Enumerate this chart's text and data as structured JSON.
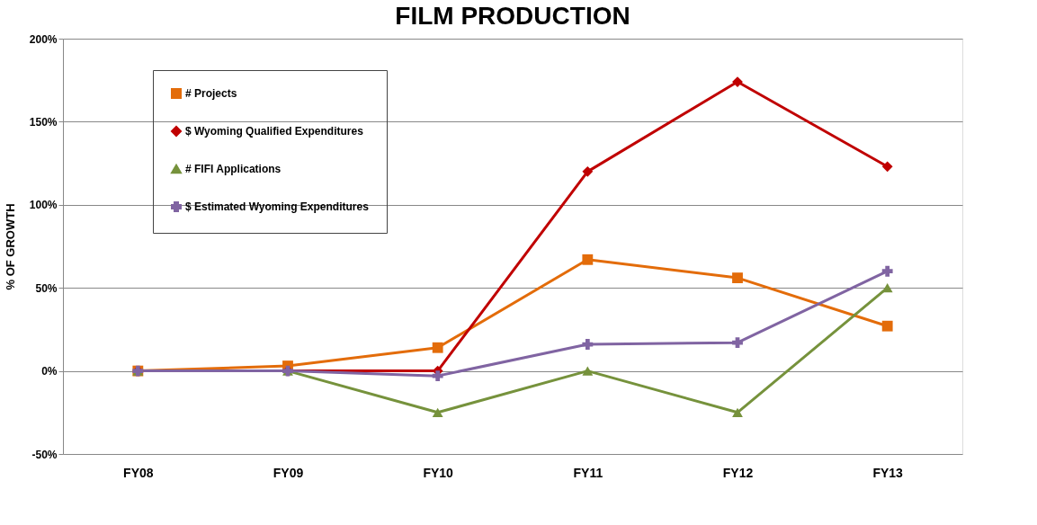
{
  "chart_data": {
    "type": "line",
    "title": "FILM PRODUCTION",
    "ylabel": "% OF GROWTH",
    "categories": [
      "FY08",
      "FY09",
      "FY10",
      "FY11",
      "FY12",
      "FY13"
    ],
    "series": [
      {
        "name": "# Projects",
        "color": "#e36c0a",
        "marker": "square",
        "values": [
          0,
          3,
          14,
          67,
          56,
          27
        ]
      },
      {
        "name": "$ Wyoming Qualified Expenditures",
        "color": "#c00000",
        "marker": "diamond",
        "values": [
          0,
          0,
          0,
          120,
          174,
          123
        ]
      },
      {
        "name": "# FIFI Applications",
        "color": "#76923c",
        "marker": "triangle",
        "values": [
          0,
          0,
          -25,
          0,
          -25,
          50
        ]
      },
      {
        "name": "$ Estimated Wyoming Expenditures",
        "color": "#8064a2",
        "marker": "cross",
        "values": [
          0,
          0,
          -3,
          16,
          17,
          60
        ]
      }
    ],
    "ylim": [
      -50,
      200
    ],
    "yticks": [
      {
        "value": -50,
        "label": "-50%"
      },
      {
        "value": 0,
        "label": "0%"
      },
      {
        "value": 50,
        "label": "50%"
      },
      {
        "value": 100,
        "label": "100%"
      },
      {
        "value": 150,
        "label": "150%"
      },
      {
        "value": 200,
        "label": "200%"
      }
    ],
    "grid": "y",
    "legend": "top left",
    "line_style": "solid"
  }
}
